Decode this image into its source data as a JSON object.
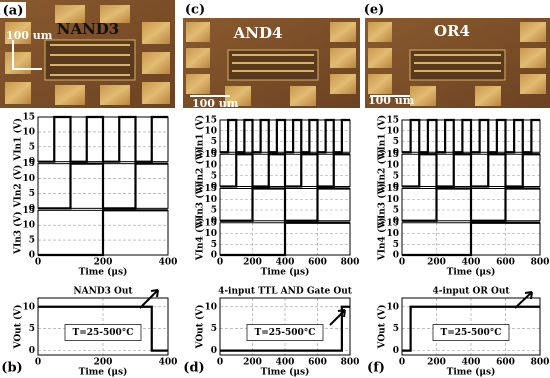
{
  "images": [
    {
      "label": "(a)",
      "title": "NAND3",
      "scale": "100 um"
    },
    {
      "label": "(c)",
      "title": "AND4",
      "scale": "100 um"
    },
    {
      "label": "(e)",
      "title": "OR4",
      "scale": "100 um"
    }
  ],
  "chart_data": [
    {
      "type": "line",
      "xlabel": "Time (μs)",
      "xlim": [
        0,
        400
      ],
      "xticks": [
        0,
        200,
        400
      ],
      "ylim": [
        0,
        15
      ],
      "yticks": [
        0,
        5,
        10,
        15
      ],
      "grid": true,
      "color": "#000000",
      "series": [
        {
          "ylabel": "VIn1 (V)",
          "x": [
            0,
            50,
            50,
            100,
            100,
            150,
            150,
            200,
            200,
            250,
            250,
            300,
            300,
            350,
            350,
            400
          ],
          "values": [
            0,
            0,
            15,
            15,
            0,
            0,
            15,
            15,
            0,
            0,
            15,
            15,
            0,
            0,
            15,
            15
          ]
        },
        {
          "ylabel": "VIn2 (V)",
          "x": [
            0,
            100,
            100,
            200,
            200,
            300,
            300,
            400
          ],
          "values": [
            0,
            0,
            15,
            15,
            0,
            0,
            15,
            15
          ]
        },
        {
          "ylabel": "VIn3 (V)",
          "x": [
            0,
            200,
            200,
            400
          ],
          "values": [
            0,
            0,
            15,
            15
          ]
        }
      ]
    },
    {
      "type": "line",
      "label": "(b)",
      "title": "NAND3 Out",
      "annotation": "T=25-500°C",
      "xlabel": "Time (μs)",
      "xlim": [
        0,
        400
      ],
      "xticks": [
        0,
        200,
        400
      ],
      "ylim": [
        -1,
        12
      ],
      "yticks": [
        0,
        5,
        10
      ],
      "grid": true,
      "color": "#000000",
      "series": [
        {
          "ylabel": "VOut (V)",
          "x": [
            0,
            350,
            350,
            400
          ],
          "values": [
            10,
            10,
            0,
            0
          ]
        }
      ]
    },
    {
      "type": "line",
      "xlabel": "Time (μs)",
      "xlim": [
        0,
        800
      ],
      "xticks": [
        0,
        200,
        400,
        600,
        800
      ],
      "ylim": [
        0,
        15
      ],
      "yticks": [
        0,
        5,
        10,
        15
      ],
      "grid": true,
      "color": "#000000",
      "series": [
        {
          "ylabel": "VIn1 (V)",
          "x": [
            0,
            50,
            50,
            100,
            100,
            150,
            150,
            200,
            200,
            250,
            250,
            300,
            300,
            350,
            350,
            400,
            400,
            450,
            450,
            500,
            500,
            550,
            550,
            600,
            600,
            650,
            650,
            700,
            700,
            750,
            750,
            800
          ],
          "values": [
            0,
            0,
            15,
            15,
            0,
            0,
            15,
            15,
            0,
            0,
            15,
            15,
            0,
            0,
            15,
            15,
            0,
            0,
            15,
            15,
            0,
            0,
            15,
            15,
            0,
            0,
            15,
            15,
            0,
            0,
            15,
            15
          ]
        },
        {
          "ylabel": "VIn2 (V)",
          "x": [
            0,
            100,
            100,
            200,
            200,
            300,
            300,
            400,
            400,
            500,
            500,
            600,
            600,
            700,
            700,
            800
          ],
          "values": [
            0,
            0,
            15,
            15,
            0,
            0,
            15,
            15,
            0,
            0,
            15,
            15,
            0,
            0,
            15,
            15
          ]
        },
        {
          "ylabel": "VIn3 (V)",
          "x": [
            0,
            200,
            200,
            400,
            400,
            600,
            600,
            800
          ],
          "values": [
            0,
            0,
            15,
            15,
            0,
            0,
            15,
            15
          ]
        },
        {
          "ylabel": "VIn4 (V)",
          "x": [
            0,
            400,
            400,
            800
          ],
          "values": [
            0,
            0,
            15,
            15
          ]
        }
      ]
    },
    {
      "type": "line",
      "label": "(d)",
      "title": "4-input TTL AND Gate Out",
      "annotation": "T=25-500°C",
      "xlabel": "Time (μs)",
      "xlim": [
        0,
        800
      ],
      "xticks": [
        0,
        200,
        400,
        600,
        800
      ],
      "ylim": [
        -1,
        12
      ],
      "yticks": [
        0,
        5,
        10
      ],
      "grid": true,
      "color": "#000000",
      "series": [
        {
          "ylabel": "VOut (V)",
          "x": [
            0,
            750,
            750,
            800
          ],
          "values": [
            0,
            0,
            10,
            10
          ]
        }
      ]
    },
    {
      "type": "line",
      "xlabel": "Time (μs)",
      "xlim": [
        0,
        800
      ],
      "xticks": [
        0,
        200,
        400,
        600,
        800
      ],
      "ylim": [
        0,
        15
      ],
      "yticks": [
        0,
        5,
        10,
        15
      ],
      "grid": true,
      "color": "#000000",
      "series": [
        {
          "ylabel": "VIn1 (V)",
          "x": [
            0,
            50,
            50,
            100,
            100,
            150,
            150,
            200,
            200,
            250,
            250,
            300,
            300,
            350,
            350,
            400,
            400,
            450,
            450,
            500,
            500,
            550,
            550,
            600,
            600,
            650,
            650,
            700,
            700,
            750,
            750,
            800
          ],
          "values": [
            0,
            0,
            15,
            15,
            0,
            0,
            15,
            15,
            0,
            0,
            15,
            15,
            0,
            0,
            15,
            15,
            0,
            0,
            15,
            15,
            0,
            0,
            15,
            15,
            0,
            0,
            15,
            15,
            0,
            0,
            15,
            15
          ]
        },
        {
          "ylabel": "VIn2 (V)",
          "x": [
            0,
            100,
            100,
            200,
            200,
            300,
            300,
            400,
            400,
            500,
            500,
            600,
            600,
            700,
            700,
            800
          ],
          "values": [
            0,
            0,
            15,
            15,
            0,
            0,
            15,
            15,
            0,
            0,
            15,
            15,
            0,
            0,
            15,
            15
          ]
        },
        {
          "ylabel": "VIn3 (V)",
          "x": [
            0,
            200,
            200,
            400,
            400,
            600,
            600,
            800
          ],
          "values": [
            0,
            0,
            15,
            15,
            0,
            0,
            15,
            15
          ]
        },
        {
          "ylabel": "VIn4 (V)",
          "x": [
            0,
            400,
            400,
            800
          ],
          "values": [
            0,
            0,
            15,
            15
          ]
        }
      ]
    },
    {
      "type": "line",
      "label": "(f)",
      "title": "4-input OR Out",
      "annotation": "T=25-500°C",
      "xlabel": "Time (μs)",
      "xlim": [
        0,
        800
      ],
      "xticks": [
        0,
        200,
        400,
        600,
        800
      ],
      "ylim": [
        -1,
        12
      ],
      "yticks": [
        0,
        5,
        10
      ],
      "grid": true,
      "color": "#000000",
      "series": [
        {
          "ylabel": "VOut (V)",
          "x": [
            0,
            50,
            50,
            800
          ],
          "values": [
            0,
            0,
            10,
            10
          ]
        }
      ]
    }
  ]
}
